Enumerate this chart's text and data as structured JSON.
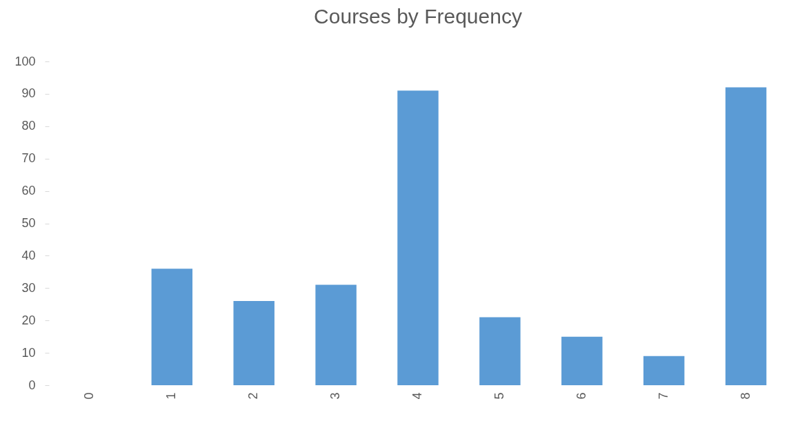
{
  "chart_data": {
    "type": "bar",
    "title": "Courses by Frequency",
    "categories": [
      "0",
      "1",
      "2",
      "3",
      "4",
      "5",
      "6",
      "7",
      "8"
    ],
    "values": [
      0,
      36,
      26,
      31,
      91,
      21,
      15,
      9,
      92
    ],
    "color": "#5b9bd5",
    "ylim": [
      0,
      100
    ],
    "yticks": [
      0,
      10,
      20,
      30,
      40,
      50,
      60,
      70,
      80,
      90,
      100
    ],
    "grid": false
  }
}
